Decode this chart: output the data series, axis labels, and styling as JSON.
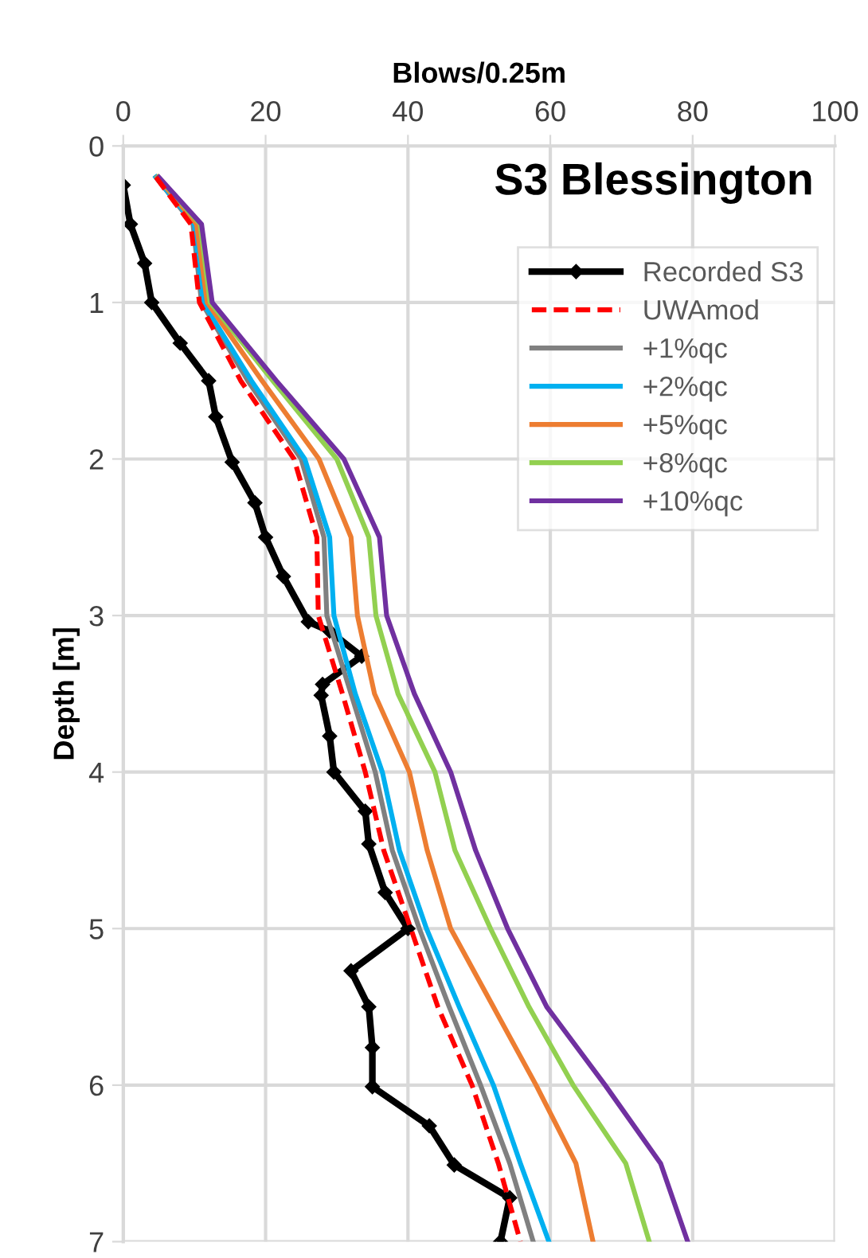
{
  "chart_data": {
    "type": "line",
    "title": "S3 Blessington",
    "xlabel": "Blows/0.25m",
    "ylabel": "Depth [m]",
    "xlim": [
      0,
      100
    ],
    "xticks": [
      0,
      20,
      40,
      60,
      80,
      100
    ],
    "ylim": [
      7,
      0
    ],
    "yticks": [
      0,
      1,
      2,
      3,
      4,
      5,
      6,
      7
    ],
    "grid": true,
    "legend": "top right",
    "series": [
      {
        "name": "Recorded S3",
        "color": "#000000",
        "marker": "diamond",
        "line_style": "solid",
        "x": [
          0,
          1,
          3,
          4,
          8,
          12,
          13,
          15.3,
          18.5,
          20,
          22.5,
          26,
          29,
          33.5,
          28,
          27.8,
          29,
          29.6,
          34,
          34.5,
          36.8,
          40,
          32,
          34.5,
          35,
          35,
          43,
          46.5,
          54.3,
          53
        ],
        "values": [
          0.25,
          0.5,
          0.75,
          1.0,
          1.26,
          1.5,
          1.73,
          2.02,
          2.28,
          2.5,
          2.75,
          3.04,
          3.1,
          3.26,
          3.44,
          3.51,
          3.77,
          4.0,
          4.25,
          4.46,
          4.77,
          5.0,
          5.27,
          5.5,
          5.76,
          6.01,
          6.26,
          6.51,
          6.72,
          7.0
        ]
      },
      {
        "name": "UWAmod",
        "color": "#ff0000",
        "marker": "none",
        "line_style": "dashed",
        "x": [
          4.6,
          9.5,
          10.7,
          16.5,
          24.0,
          27.2,
          27.4,
          30.8,
          34.0,
          36.6,
          40.4,
          44.2,
          49,
          52.7,
          55.8
        ],
        "values": [
          0.2,
          0.5,
          1.0,
          1.5,
          2.0,
          2.5,
          3.0,
          3.5,
          4.0,
          4.5,
          5.0,
          5.5,
          6.0,
          6.5,
          7.0
        ]
      },
      {
        "name": "+1%qc",
        "color": "#808080",
        "marker": "none",
        "line_style": "solid",
        "x": [
          4.6,
          9.8,
          11,
          17.5,
          25.0,
          28.2,
          28.6,
          32,
          35.4,
          37.8,
          41.6,
          45.8,
          50.2,
          54.3,
          57.6
        ],
        "values": [
          0.2,
          0.5,
          1.0,
          1.5,
          2.0,
          2.5,
          3.0,
          3.5,
          4.0,
          4.5,
          5.0,
          5.5,
          6.0,
          6.5,
          7.0
        ]
      },
      {
        "name": "+2%qc",
        "color": "#00b0f0",
        "marker": "none",
        "line_style": "solid",
        "x": [
          4.6,
          10,
          11.2,
          18,
          25.5,
          29,
          29.6,
          32.6,
          36.4,
          38.8,
          42.6,
          47.2,
          52,
          55.8,
          59.8
        ],
        "values": [
          0.2,
          0.5,
          1.0,
          1.5,
          2.0,
          2.5,
          3.0,
          3.5,
          4.0,
          4.5,
          5.0,
          5.5,
          6.0,
          6.5,
          7.0
        ]
      },
      {
        "name": "+5%qc",
        "color": "#ed7d31",
        "marker": "none",
        "line_style": "solid",
        "x": [
          4.8,
          10.3,
          11.8,
          19.5,
          27.5,
          32,
          32.9,
          35.3,
          40.2,
          42.7,
          46,
          52,
          58,
          63.6,
          66
        ],
        "values": [
          0.2,
          0.5,
          1.0,
          1.5,
          2.0,
          2.5,
          3.0,
          3.5,
          4.0,
          4.5,
          5.0,
          5.5,
          6.0,
          6.5,
          7.0
        ]
      },
      {
        "name": "+8%qc",
        "color": "#92d050",
        "marker": "none",
        "line_style": "solid",
        "x": [
          4.9,
          10.8,
          12.2,
          21,
          30,
          34.5,
          35.5,
          38.6,
          43.8,
          46.6,
          51.6,
          57,
          63.2,
          70.6,
          73.9
        ],
        "values": [
          0.2,
          0.5,
          1.0,
          1.5,
          2.0,
          2.5,
          3.0,
          3.5,
          4.0,
          4.5,
          5.0,
          5.5,
          6.0,
          6.5,
          7.0
        ]
      },
      {
        "name": "+10%qc",
        "color": "#7030a0",
        "marker": "none",
        "line_style": "solid",
        "x": [
          5.0,
          11,
          12.5,
          21.5,
          31,
          36,
          37,
          40.9,
          46,
          49.5,
          54,
          59.5,
          67.7,
          75.5,
          79.3
        ],
        "values": [
          0.2,
          0.5,
          1.0,
          1.5,
          2.0,
          2.5,
          3.0,
          3.5,
          4.0,
          4.5,
          5.0,
          5.5,
          6.0,
          6.5,
          7.0
        ]
      }
    ]
  }
}
